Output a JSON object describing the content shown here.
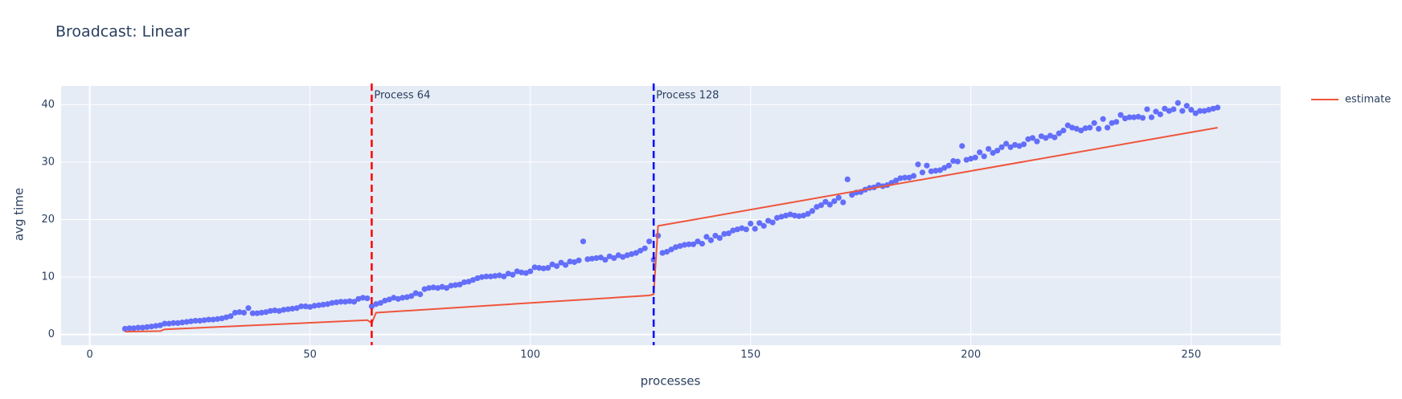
{
  "chart_data": {
    "type": "scatter",
    "title": "Broadcast: Linear",
    "x_label": "processes",
    "y_label": "avg time",
    "xlim": [
      -6.5,
      270.3
    ],
    "ylim": [
      -1.86,
      43.26
    ],
    "xticks": [
      0,
      50,
      100,
      150,
      200,
      250
    ],
    "yticks": [
      0,
      10,
      20,
      30,
      40
    ],
    "grid": true,
    "legend": "top-right",
    "series": [
      {
        "mode": "markers",
        "color": "#636efa",
        "x": [
          8,
          9,
          10,
          11,
          12,
          13,
          14,
          15,
          16,
          17,
          18,
          19,
          20,
          21,
          22,
          23,
          24,
          25,
          26,
          27,
          28,
          29,
          30,
          31,
          32,
          33,
          34,
          35,
          36,
          37,
          38,
          39,
          40,
          41,
          42,
          43,
          44,
          45,
          46,
          47,
          48,
          49,
          50,
          51,
          52,
          53,
          54,
          55,
          56,
          57,
          58,
          59,
          60,
          61,
          62,
          63,
          64,
          65,
          66,
          67,
          68,
          69,
          70,
          71,
          72,
          73,
          74,
          75,
          76,
          77,
          78,
          79,
          80,
          81,
          82,
          83,
          84,
          85,
          86,
          87,
          88,
          89,
          90,
          91,
          92,
          93,
          94,
          95,
          96,
          97,
          98,
          99,
          100,
          101,
          102,
          103,
          104,
          105,
          106,
          107,
          108,
          109,
          110,
          111,
          112,
          113,
          114,
          115,
          116,
          117,
          118,
          119,
          120,
          121,
          122,
          123,
          124,
          125,
          126,
          127,
          128,
          129,
          130,
          131,
          132,
          133,
          134,
          135,
          136,
          137,
          138,
          139,
          140,
          141,
          142,
          143,
          144,
          145,
          146,
          147,
          148,
          149,
          150,
          151,
          152,
          153,
          154,
          155,
          156,
          157,
          158,
          159,
          160,
          161,
          162,
          163,
          164,
          165,
          166,
          167,
          168,
          169,
          170,
          171,
          172,
          173,
          174,
          175,
          176,
          177,
          178,
          179,
          180,
          181,
          182,
          183,
          184,
          185,
          186,
          187,
          188,
          189,
          190,
          191,
          192,
          193,
          194,
          195,
          196,
          197,
          198,
          199,
          200,
          201,
          202,
          203,
          204,
          205,
          206,
          207,
          208,
          209,
          210,
          211,
          212,
          213,
          214,
          215,
          216,
          217,
          218,
          219,
          220,
          221,
          222,
          223,
          224,
          225,
          226,
          227,
          228,
          229,
          230,
          231,
          232,
          233,
          234,
          235,
          236,
          237,
          238,
          239,
          240,
          241,
          242,
          243,
          244,
          245,
          246,
          247,
          248,
          249,
          250,
          251,
          252,
          253,
          254,
          255,
          256
        ],
        "values": [
          1.0,
          1.1,
          1.1,
          1.2,
          1.2,
          1.3,
          1.4,
          1.5,
          1.6,
          1.9,
          1.9,
          2.0,
          2.0,
          2.1,
          2.2,
          2.3,
          2.4,
          2.4,
          2.5,
          2.6,
          2.6,
          2.7,
          2.8,
          3.0,
          3.2,
          3.8,
          3.9,
          3.8,
          4.6,
          3.7,
          3.7,
          3.8,
          3.9,
          4.1,
          4.2,
          4.1,
          4.3,
          4.4,
          4.5,
          4.6,
          4.9,
          4.9,
          4.8,
          5.0,
          5.1,
          5.2,
          5.3,
          5.5,
          5.6,
          5.7,
          5.7,
          5.8,
          5.7,
          6.2,
          6.4,
          6.3,
          4.9,
          5.3,
          5.5,
          5.9,
          6.1,
          6.4,
          6.2,
          6.4,
          6.5,
          6.7,
          7.2,
          7.0,
          7.9,
          8.1,
          8.2,
          8.1,
          8.3,
          8.1,
          8.5,
          8.6,
          8.7,
          9.1,
          9.2,
          9.5,
          9.8,
          10.0,
          10.1,
          10.1,
          10.2,
          10.3,
          10.1,
          10.6,
          10.4,
          11.0,
          10.8,
          10.7,
          11.0,
          11.7,
          11.6,
          11.5,
          11.6,
          12.2,
          11.9,
          12.5,
          12.1,
          12.7,
          12.6,
          12.9,
          16.2,
          13.1,
          13.2,
          13.3,
          13.4,
          13.0,
          13.6,
          13.3,
          13.8,
          13.5,
          13.8,
          14.0,
          14.2,
          14.6,
          15.0,
          16.2,
          13.0,
          17.2,
          14.2,
          14.4,
          14.8,
          15.2,
          15.4,
          15.6,
          15.7,
          15.7,
          16.2,
          15.8,
          17.0,
          16.4,
          17.2,
          16.8,
          17.5,
          17.6,
          18.1,
          18.3,
          18.5,
          18.3,
          19.3,
          18.4,
          19.4,
          18.9,
          19.8,
          19.5,
          20.3,
          20.5,
          20.7,
          20.9,
          20.7,
          20.6,
          20.7,
          21.0,
          21.5,
          22.2,
          22.5,
          23.1,
          22.6,
          23.2,
          23.8,
          23.0,
          27.0,
          24.3,
          24.7,
          24.8,
          25.2,
          25.5,
          25.6,
          26.0,
          25.8,
          26.0,
          26.4,
          26.8,
          27.2,
          27.3,
          27.3,
          27.6,
          29.6,
          28.2,
          29.4,
          28.4,
          28.5,
          28.6,
          29.0,
          29.4,
          30.2,
          30.1,
          32.8,
          30.4,
          30.6,
          30.8,
          31.7,
          31.0,
          32.3,
          31.6,
          32.0,
          32.6,
          33.2,
          32.6,
          33.0,
          32.8,
          33.1,
          34.0,
          34.2,
          33.6,
          34.5,
          34.2,
          34.6,
          34.3,
          35.0,
          35.5,
          36.4,
          36.0,
          35.8,
          35.5,
          35.9,
          36.0,
          36.8,
          35.8,
          37.5,
          36.0,
          36.8,
          37.0,
          38.2,
          37.6,
          37.8,
          37.8,
          37.9,
          37.7,
          39.2,
          37.8,
          38.8,
          38.3,
          39.3,
          38.9,
          39.2,
          40.3,
          38.9,
          39.8,
          39.1,
          38.5,
          38.9,
          38.9,
          39.1,
          39.3,
          39.5
        ]
      },
      {
        "name": "estimate",
        "mode": "lines",
        "color": "#ef553b",
        "x": [
          8,
          16,
          17,
          63,
          64,
          65,
          127,
          128,
          129,
          256
        ],
        "values": [
          0.5,
          0.6,
          0.9,
          2.5,
          2.0,
          3.8,
          6.8,
          7.0,
          18.9,
          36.0
        ]
      }
    ],
    "vlines": [
      {
        "x": 64,
        "color": "#ff0000",
        "label": "Process 64"
      },
      {
        "x": 128,
        "color": "#0000ff",
        "label": "Process 128"
      }
    ]
  }
}
